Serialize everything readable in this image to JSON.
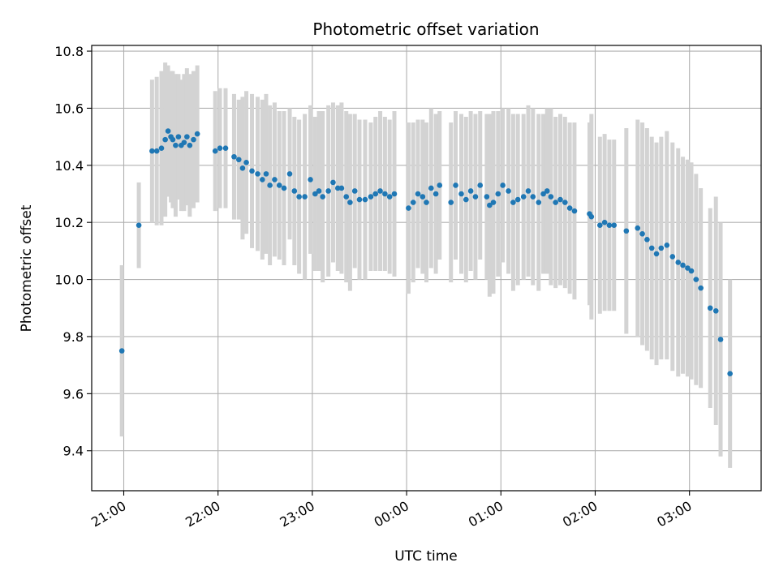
{
  "chart_data": {
    "type": "scatter",
    "title": "Photometric offset variation",
    "xlabel": "UTC time",
    "ylabel": "Photometric offset",
    "x_unit": "hours",
    "x_tick_labels": [
      "21:00",
      "22:00",
      "23:00",
      "00:00",
      "01:00",
      "02:00",
      "03:00"
    ],
    "x_tick_values": [
      21,
      22,
      23,
      24,
      25,
      26,
      27
    ],
    "xlim": [
      20.66,
      27.76
    ],
    "ylim": [
      9.26,
      10.82
    ],
    "y_ticks": [
      9.4,
      9.6,
      9.8,
      10.0,
      10.2,
      10.4,
      10.6,
      10.8
    ],
    "grid": true,
    "colors": {
      "marker": "#1f77b4",
      "errorbar": "#d3d3d3",
      "grid": "#b0b0b0"
    },
    "series": [
      {
        "x": [
          20.98,
          21.16,
          21.3,
          21.35,
          21.4,
          21.44,
          21.47,
          21.5,
          21.52,
          21.55,
          21.58,
          21.61,
          21.64,
          21.67,
          21.7,
          21.74,
          21.78,
          21.97,
          22.02,
          22.08,
          22.17,
          22.22,
          22.26,
          22.3,
          22.36,
          22.42,
          22.47,
          22.51,
          22.55,
          22.6,
          22.65,
          22.7,
          22.76,
          22.81,
          22.86,
          22.92,
          22.98,
          23.03,
          23.07,
          23.11,
          23.17,
          23.22,
          23.27,
          23.31,
          23.36,
          23.4,
          23.45,
          23.5,
          23.56,
          23.62,
          23.67,
          23.72,
          23.77,
          23.82,
          23.87,
          24.02,
          24.07,
          24.12,
          24.17,
          24.21,
          24.26,
          24.31,
          24.35,
          24.47,
          24.52,
          24.58,
          24.63,
          24.68,
          24.73,
          24.78,
          24.85,
          24.88,
          24.92,
          24.97,
          25.02,
          25.08,
          25.13,
          25.18,
          25.24,
          25.29,
          25.34,
          25.4,
          25.45,
          25.49,
          25.53,
          25.58,
          25.63,
          25.68,
          25.73,
          25.78,
          25.94,
          25.96,
          26.05,
          26.1,
          26.15,
          26.2,
          26.33,
          26.45,
          26.5,
          26.55,
          26.6,
          26.65,
          26.7,
          26.76,
          26.82,
          26.88,
          26.93,
          26.98,
          27.02,
          27.07,
          27.12,
          27.22,
          27.28,
          27.33,
          27.43
        ],
        "y": [
          9.75,
          10.19,
          10.45,
          10.45,
          10.46,
          10.49,
          10.52,
          10.5,
          10.49,
          10.47,
          10.5,
          10.47,
          10.48,
          10.5,
          10.47,
          10.49,
          10.51,
          10.45,
          10.46,
          10.46,
          10.43,
          10.42,
          10.39,
          10.41,
          10.38,
          10.37,
          10.35,
          10.37,
          10.33,
          10.35,
          10.33,
          10.32,
          10.37,
          10.31,
          10.29,
          10.29,
          10.35,
          10.3,
          10.31,
          10.29,
          10.31,
          10.34,
          10.32,
          10.32,
          10.29,
          10.27,
          10.31,
          10.28,
          10.28,
          10.29,
          10.3,
          10.31,
          10.3,
          10.29,
          10.3,
          10.25,
          10.27,
          10.3,
          10.29,
          10.27,
          10.32,
          10.3,
          10.33,
          10.27,
          10.33,
          10.3,
          10.28,
          10.31,
          10.29,
          10.33,
          10.29,
          10.26,
          10.27,
          10.3,
          10.33,
          10.31,
          10.27,
          10.28,
          10.29,
          10.31,
          10.29,
          10.27,
          10.3,
          10.31,
          10.29,
          10.27,
          10.28,
          10.27,
          10.25,
          10.24,
          10.23,
          10.22,
          10.19,
          10.2,
          10.19,
          10.19,
          10.17,
          10.18,
          10.16,
          10.14,
          10.11,
          10.09,
          10.11,
          10.12,
          10.08,
          10.06,
          10.05,
          10.04,
          10.03,
          10.0,
          9.97,
          9.9,
          9.89,
          9.79,
          9.67
        ],
        "err": [
          0.3,
          0.15,
          0.25,
          0.26,
          0.27,
          0.27,
          0.23,
          0.23,
          0.24,
          0.25,
          0.22,
          0.23,
          0.24,
          0.24,
          0.25,
          0.24,
          0.24,
          0.21,
          0.21,
          0.21,
          0.22,
          0.21,
          0.25,
          0.25,
          0.27,
          0.27,
          0.28,
          0.28,
          0.28,
          0.27,
          0.26,
          0.27,
          0.23,
          0.26,
          0.27,
          0.29,
          0.26,
          0.27,
          0.28,
          0.3,
          0.3,
          0.28,
          0.29,
          0.3,
          0.3,
          0.31,
          0.27,
          0.28,
          0.28,
          0.26,
          0.27,
          0.28,
          0.27,
          0.27,
          0.29,
          0.3,
          0.28,
          0.26,
          0.27,
          0.28,
          0.28,
          0.28,
          0.26,
          0.28,
          0.26,
          0.28,
          0.29,
          0.28,
          0.29,
          0.26,
          0.29,
          0.32,
          0.32,
          0.29,
          0.27,
          0.29,
          0.31,
          0.3,
          0.29,
          0.3,
          0.31,
          0.31,
          0.28,
          0.29,
          0.31,
          0.3,
          0.3,
          0.3,
          0.3,
          0.31,
          0.32,
          0.36,
          0.31,
          0.31,
          0.3,
          0.3,
          0.36,
          0.38,
          0.39,
          0.39,
          0.39,
          0.39,
          0.39,
          0.4,
          0.4,
          0.4,
          0.38,
          0.38,
          0.38,
          0.37,
          0.35,
          0.35,
          0.4,
          0.41,
          0.33
        ]
      }
    ]
  }
}
